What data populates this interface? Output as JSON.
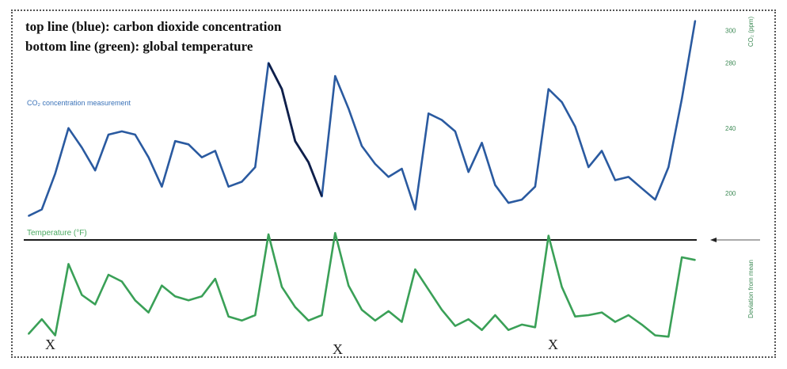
{
  "captions": {
    "line1": "top line (blue): carbon dioxide concentration",
    "line2": "bottom line (green): global temperature"
  },
  "markers": [
    "X",
    "X",
    "X"
  ],
  "colors": {
    "co2": "#2a5aa0",
    "co2_dark": "#0f1f4a",
    "co2_light": "#5b8fd0",
    "temp": "#3aa057",
    "baseline": "#1a1a1a",
    "label_co2": "#3a72b8",
    "label_temp": "#4aa860",
    "axis_text": "#3d8a55"
  },
  "chart_data": {
    "type": "line",
    "co2_label": "CO₂ concentration measurement",
    "temp_label": "Temperature (°F)",
    "right_axis_co2_title": "CO₂ (ppm)",
    "right_axis_temp_title": "Deviation from mean",
    "right_axis_ticks": [
      300,
      280,
      240,
      200
    ],
    "x": [
      0,
      2,
      4,
      6,
      8,
      10,
      12,
      14,
      16,
      18,
      20,
      22,
      24,
      26,
      28,
      30,
      32,
      34,
      36,
      38,
      40,
      42,
      44,
      46,
      48,
      50,
      52,
      54,
      56,
      58,
      60,
      62,
      64,
      66,
      68,
      70,
      72,
      74,
      76,
      78,
      80,
      82,
      84,
      86,
      88,
      90,
      92,
      94,
      96,
      98,
      100
    ],
    "series": [
      {
        "name": "carbon dioxide concentration",
        "values": [
          186,
          190,
          212,
          240,
          228,
          214,
          236,
          238,
          236,
          222,
          204,
          232,
          230,
          222,
          226,
          204,
          207,
          216,
          280,
          264,
          232,
          219,
          198,
          272,
          252,
          229,
          218,
          210,
          215,
          190,
          249,
          245,
          238,
          213,
          231,
          205,
          194,
          196,
          204,
          264,
          256,
          241,
          216,
          226,
          208,
          210,
          203,
          196,
          216,
          258,
          306
        ]
      },
      {
        "name": "global temperature",
        "values": [
          -4.4,
          -3.3,
          -4.5,
          0.8,
          -1.5,
          -2.2,
          0.0,
          -0.5,
          -1.9,
          -2.8,
          -0.8,
          -1.6,
          -1.9,
          -1.6,
          -0.3,
          -3.1,
          -3.4,
          -3.0,
          3.0,
          -0.9,
          -2.4,
          -3.4,
          -3.0,
          3.1,
          -0.8,
          -2.6,
          -3.4,
          -2.7,
          -3.5,
          0.4,
          -1.1,
          -2.6,
          -3.8,
          -3.3,
          -4.1,
          -3.0,
          -4.1,
          -3.7,
          -3.9,
          2.9,
          -0.9,
          -3.1,
          -3.0,
          -2.8,
          -3.5,
          -3.0,
          -3.7,
          -4.5,
          -4.6,
          1.3,
          1.1
        ]
      }
    ],
    "ylim_co2": [
      180,
      310
    ],
    "ylim_temp": [
      -5,
      5
    ],
    "grid": false
  }
}
